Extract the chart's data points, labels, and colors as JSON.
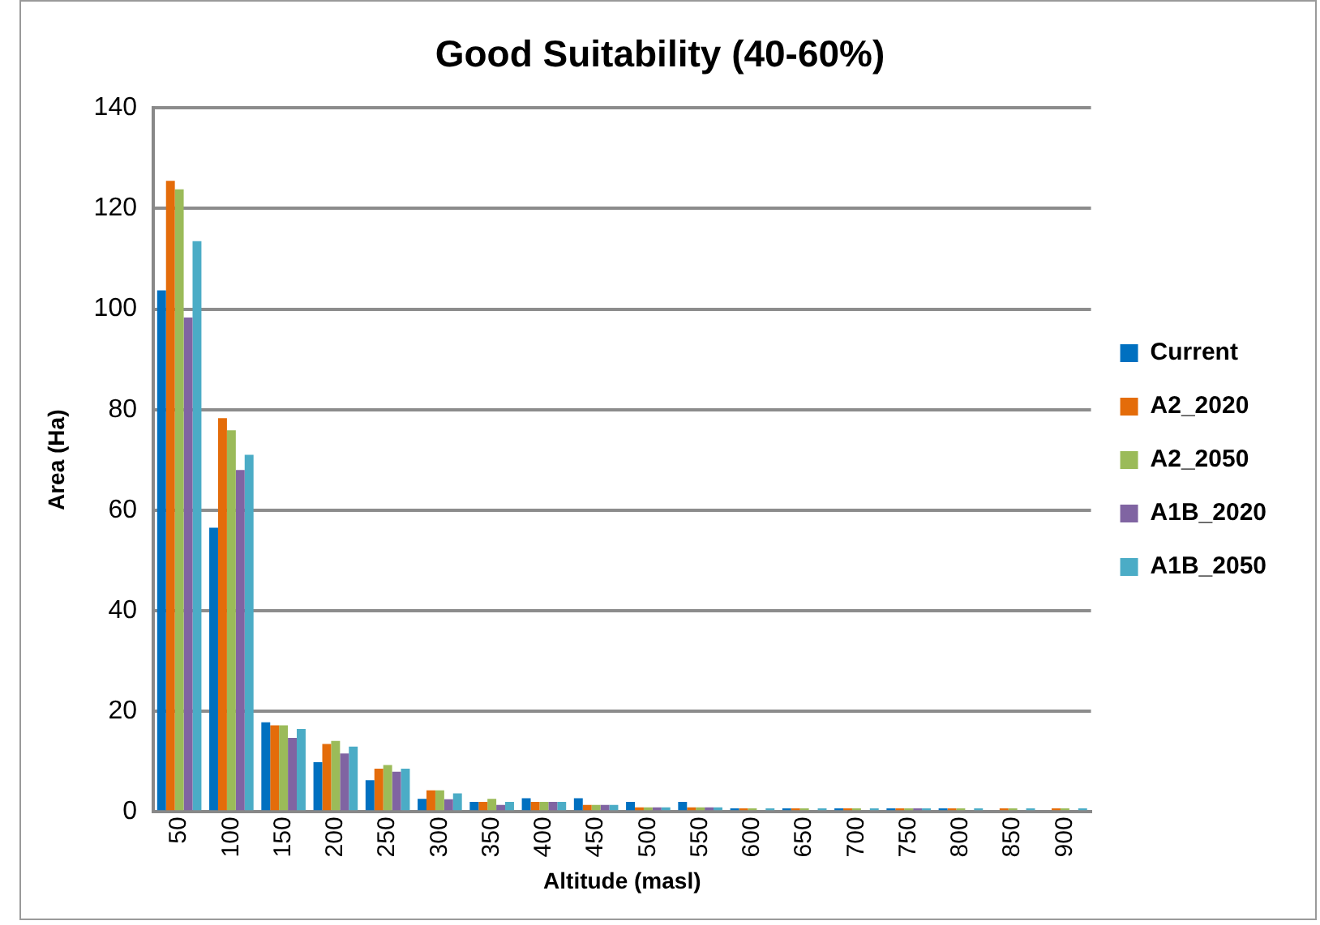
{
  "chart_data": {
    "type": "bar",
    "title": "Good Suitability (40-60%)",
    "xlabel": "Altitude (masl)",
    "ylabel": "Area (Ha)",
    "categories": [
      "50",
      "100",
      "150",
      "200",
      "250",
      "300",
      "350",
      "400",
      "450",
      "500",
      "550",
      "600",
      "650",
      "700",
      "750",
      "800",
      "850",
      "900"
    ],
    "series": [
      {
        "name": "Current",
        "color": "#0070c0",
        "values": [
          103.7,
          56.5,
          17.8,
          9.9,
          6.3,
          2.6,
          2.0,
          2.7,
          2.7,
          2.0,
          2.0,
          0.7,
          0.7,
          0.7,
          0.7,
          0.7,
          0,
          0
        ]
      },
      {
        "name": "A2_2020",
        "color": "#e46c0a",
        "values": [
          125.5,
          78.3,
          17.2,
          13.5,
          8.6,
          4.3,
          2.0,
          2.0,
          1.4,
          0.9,
          0.9,
          0.7,
          0.7,
          0.7,
          0.7,
          0.7,
          0.7,
          0.7
        ]
      },
      {
        "name": "A2_2050",
        "color": "#9bbb59",
        "values": [
          123.8,
          75.9,
          17.2,
          14.1,
          9.3,
          4.3,
          2.6,
          2.0,
          1.4,
          0.9,
          0.9,
          0.7,
          0.7,
          0.7,
          0.7,
          0.7,
          0.7,
          0.7
        ]
      },
      {
        "name": "A1B_2020",
        "color": "#8064a2",
        "values": [
          98.3,
          68.0,
          14.7,
          11.6,
          8.0,
          2.5,
          1.4,
          2.0,
          1.4,
          0.9,
          0.9,
          0,
          0,
          0,
          0.7,
          0,
          0,
          0
        ]
      },
      {
        "name": "A1B_2050",
        "color": "#4bacc6",
        "values": [
          113.5,
          71.0,
          16.5,
          13.0,
          8.6,
          3.7,
          2.0,
          2.0,
          1.4,
          0.9,
          0.9,
          0.7,
          0.7,
          0.7,
          0.7,
          0.7,
          0.7,
          0.7
        ]
      }
    ],
    "ylim": [
      0,
      140
    ],
    "yticks": [
      0,
      20,
      40,
      60,
      80,
      100,
      120,
      140
    ],
    "grid": "y",
    "legend": "right"
  }
}
